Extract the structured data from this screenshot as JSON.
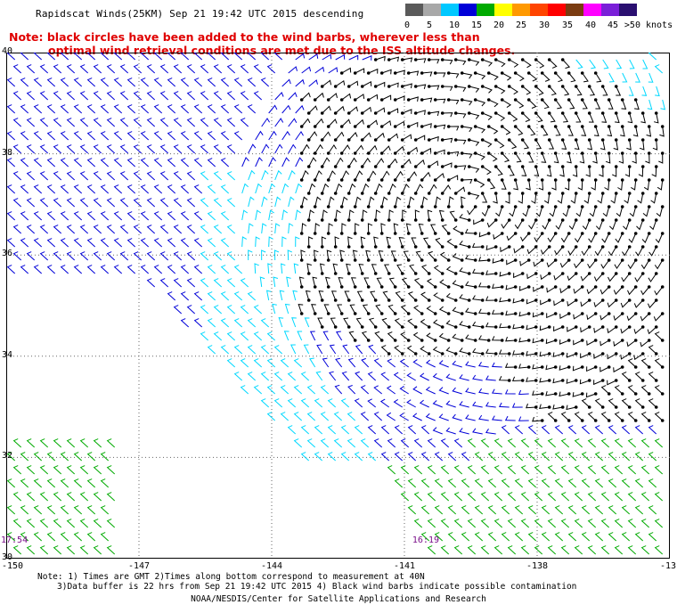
{
  "header": {
    "title": "Rapidscat Winds(25KM) Sep 21 19:42 UTC 2015 descending"
  },
  "legend": {
    "labels": [
      "0",
      "5",
      "10",
      "15",
      "20",
      "25",
      "30",
      "35",
      "40",
      "45",
      ">50 knots"
    ],
    "colors": [
      "#5a5a5a",
      "#a8a8a8",
      "#00c8ff",
      "#0000d8",
      "#00aa00",
      "#ffff00",
      "#ff9900",
      "#ff4400",
      "#ff0000",
      "#7a3b10",
      "#ff00ff",
      "#7a1fd8",
      "#2a0f70"
    ]
  },
  "note": {
    "line1": "Note: black circles have been added to the wind barbs, wherever less than",
    "line2": "optimal wind retrieval conditions are met due to the ISS altitude changes."
  },
  "map": {
    "lat_labels": [
      "40",
      "38",
      "36",
      "34",
      "32",
      "30"
    ],
    "lon_labels": [
      "-150",
      "-147",
      "-144",
      "-141",
      "-138",
      "-13"
    ],
    "time_labels": [
      {
        "text": "17:54",
        "lon": -150,
        "lat": 30.35
      },
      {
        "text": "16:19",
        "lon": -140.7,
        "lat": 30.35
      }
    ],
    "colors": {
      "cyan": "#00d8ff",
      "blue": "#0000d8",
      "green": "#00aa00",
      "black": "#000000",
      "grid": "#666666"
    }
  },
  "footer": {
    "line1": "Note: 1) Times are GMT 2)Times along bottom correspond to measurement at 40N",
    "line2": "3)Data buffer is 22 hrs from Sep 21 19:42 UTC 2015 4) Black wind barbs indicate possible contamination",
    "line3": "NOAA/NESDIS/Center for Satellite Applications and Research"
  }
}
